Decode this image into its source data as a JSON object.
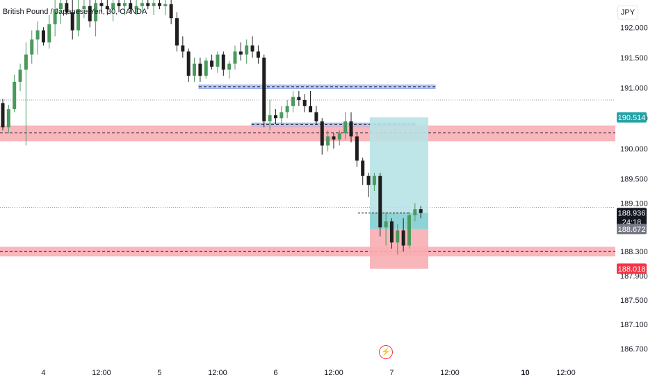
{
  "header": {
    "title": "British Pound / Japanese Yen, 30, OANDA",
    "currency": "JPY"
  },
  "colors": {
    "bull": "#4a9a5e",
    "bear": "#1e1e1e",
    "zone_red": "#f8a9b0",
    "zone_blue": "#b9c9f5",
    "target": "#b7e2e4",
    "stop": "#f8aeb3",
    "badge_teal": "#22a3a8",
    "badge_red": "#f23645",
    "badge_gray": "#787b86"
  },
  "chart_data": {
    "type": "candlestick",
    "ylim": [
      186.55,
      192.45
    ],
    "yticks": [
      "192.000",
      "191.500",
      "191.000",
      "190.500",
      "190.000",
      "189.500",
      "189.100",
      "188.300",
      "187.900",
      "187.500",
      "187.100",
      "186.700"
    ],
    "ytick_values": [
      192.0,
      191.5,
      191.0,
      190.5,
      190.0,
      189.5,
      189.1,
      188.3,
      187.9,
      187.5,
      187.1,
      186.7
    ],
    "xticks": [
      {
        "label": "4",
        "bar": 7,
        "bold": false
      },
      {
        "label": "12:00",
        "bar": 17,
        "bold": false
      },
      {
        "label": "5",
        "bar": 27,
        "bold": false
      },
      {
        "label": "12:00",
        "bar": 37,
        "bold": false
      },
      {
        "label": "6",
        "bar": 47,
        "bold": false
      },
      {
        "label": "12:00",
        "bar": 57,
        "bold": false
      },
      {
        "label": "7",
        "bar": 67,
        "bold": false
      },
      {
        "label": "12:00",
        "bar": 77,
        "bold": false
      },
      {
        "label": "10",
        "bar": 90,
        "bold": true
      },
      {
        "label": "12:00",
        "bar": 97,
        "bold": false
      }
    ],
    "candles": [
      [
        190.75,
        190.82,
        190.3,
        190.35
      ],
      [
        190.35,
        190.72,
        190.25,
        190.65
      ],
      [
        190.65,
        191.22,
        190.6,
        191.1
      ],
      [
        191.1,
        191.4,
        190.95,
        191.3
      ],
      [
        191.3,
        191.75,
        190.05,
        191.55
      ],
      [
        191.55,
        191.95,
        191.4,
        191.8
      ],
      [
        191.8,
        192.1,
        191.55,
        191.95
      ],
      [
        191.95,
        192.0,
        191.7,
        191.75
      ],
      [
        191.75,
        192.2,
        191.65,
        192.05
      ],
      [
        192.05,
        192.45,
        191.85,
        192.3
      ],
      [
        192.3,
        192.45,
        192.05,
        192.4
      ],
      [
        192.4,
        192.45,
        192.2,
        192.25
      ],
      [
        192.25,
        192.45,
        191.8,
        191.95
      ],
      [
        191.95,
        192.45,
        191.85,
        192.3
      ],
      [
        192.3,
        192.45,
        192.15,
        192.35
      ],
      [
        192.35,
        192.45,
        192.0,
        192.1
      ],
      [
        192.1,
        192.45,
        191.85,
        192.4
      ],
      [
        192.4,
        192.45,
        192.25,
        192.35
      ],
      [
        192.35,
        192.45,
        192.2,
        192.3
      ],
      [
        192.3,
        192.45,
        192.1,
        192.4
      ],
      [
        192.4,
        192.45,
        192.25,
        192.35
      ],
      [
        192.35,
        192.45,
        192.2,
        192.4
      ],
      [
        192.4,
        192.45,
        192.25,
        192.3
      ],
      [
        192.3,
        192.45,
        192.2,
        192.35
      ],
      [
        192.35,
        192.45,
        192.25,
        192.4
      ],
      [
        192.4,
        192.45,
        192.3,
        192.35
      ],
      [
        192.35,
        192.45,
        192.2,
        192.4
      ],
      [
        192.4,
        192.45,
        192.3,
        192.35
      ],
      [
        192.35,
        192.45,
        192.2,
        192.38
      ],
      [
        192.38,
        192.45,
        192.05,
        192.15
      ],
      [
        192.15,
        192.25,
        191.6,
        191.7
      ],
      [
        191.7,
        191.85,
        191.5,
        191.6
      ],
      [
        191.6,
        191.65,
        191.1,
        191.2
      ],
      [
        191.2,
        191.5,
        191.1,
        191.4
      ],
      [
        191.4,
        191.5,
        191.1,
        191.2
      ],
      [
        191.2,
        191.5,
        191.15,
        191.45
      ],
      [
        191.45,
        191.55,
        191.3,
        191.35
      ],
      [
        191.35,
        191.6,
        191.25,
        191.55
      ],
      [
        191.55,
        191.6,
        191.2,
        191.3
      ],
      [
        191.3,
        191.45,
        191.15,
        191.4
      ],
      [
        191.4,
        191.7,
        191.3,
        191.6
      ],
      [
        191.6,
        191.75,
        191.45,
        191.55
      ],
      [
        191.55,
        191.8,
        191.4,
        191.7
      ],
      [
        191.7,
        191.85,
        191.5,
        191.6
      ],
      [
        191.6,
        191.7,
        191.4,
        191.5
      ],
      [
        191.5,
        191.55,
        190.35,
        190.45
      ],
      [
        190.45,
        190.8,
        190.3,
        190.55
      ],
      [
        190.55,
        190.65,
        190.4,
        190.5
      ],
      [
        190.5,
        190.7,
        190.4,
        190.6
      ],
      [
        190.6,
        190.8,
        190.5,
        190.7
      ],
      [
        190.7,
        190.95,
        190.6,
        190.85
      ],
      [
        190.85,
        190.95,
        190.7,
        190.8
      ],
      [
        190.8,
        190.9,
        190.6,
        190.7
      ],
      [
        190.7,
        190.95,
        190.65,
        190.6
      ],
      [
        190.6,
        190.7,
        190.4,
        190.45
      ],
      [
        190.45,
        190.5,
        189.9,
        190.05
      ],
      [
        190.05,
        190.3,
        189.95,
        190.2
      ],
      [
        190.2,
        190.25,
        190.0,
        190.15
      ],
      [
        190.15,
        190.3,
        190.05,
        190.25
      ],
      [
        190.25,
        190.6,
        190.15,
        190.45
      ],
      [
        190.45,
        190.6,
        190.1,
        190.2
      ],
      [
        190.2,
        190.25,
        189.7,
        189.8
      ],
      [
        189.8,
        189.85,
        189.4,
        189.55
      ],
      [
        189.55,
        189.6,
        189.2,
        189.4
      ],
      [
        189.4,
        189.6,
        189.3,
        189.55
      ],
      [
        189.55,
        189.6,
        188.55,
        188.7
      ],
      [
        188.7,
        188.95,
        188.4,
        188.8
      ],
      [
        188.8,
        188.85,
        188.35,
        188.45
      ],
      [
        188.45,
        188.75,
        188.25,
        188.65
      ],
      [
        188.65,
        188.85,
        188.3,
        188.4
      ],
      [
        188.4,
        188.95,
        188.35,
        188.9
      ],
      [
        188.9,
        189.1,
        188.8,
        189.0
      ],
      [
        189.0,
        189.05,
        188.85,
        188.936
      ]
    ],
    "zones": [
      {
        "kind": "red",
        "top": 190.38,
        "bottom": 190.12,
        "x0": 0,
        "x1": 885,
        "dashed_at": 190.26
      },
      {
        "kind": "red",
        "top": 188.38,
        "bottom": 188.22,
        "x0": 0,
        "x1": 885,
        "dashed_at": 188.3
      },
      {
        "kind": "blue",
        "top": 191.05,
        "bottom": 190.99,
        "x0": 286,
        "x1": 626,
        "dashed_at": 191.02
      },
      {
        "kind": "blue",
        "top": 190.42,
        "bottom": 190.37,
        "x0": 362,
        "x1": 597,
        "dashed_at": 190.395
      }
    ],
    "position": {
      "x0": 532,
      "x1": 616,
      "target": 190.514,
      "entry": 188.672,
      "stop": 188.018,
      "current": 188.936
    },
    "dotted_lines": [
      190.8,
      189.03
    ],
    "price_badges": [
      {
        "label": "190.514",
        "value": 190.514,
        "kind": "teal"
      },
      {
        "label": "188.936",
        "value": 188.936,
        "kind": "black",
        "sub": "24:18"
      },
      {
        "label": "188.672",
        "value": 188.672,
        "kind": "gray"
      },
      {
        "label": "188.018",
        "value": 188.018,
        "kind": "red"
      }
    ]
  }
}
